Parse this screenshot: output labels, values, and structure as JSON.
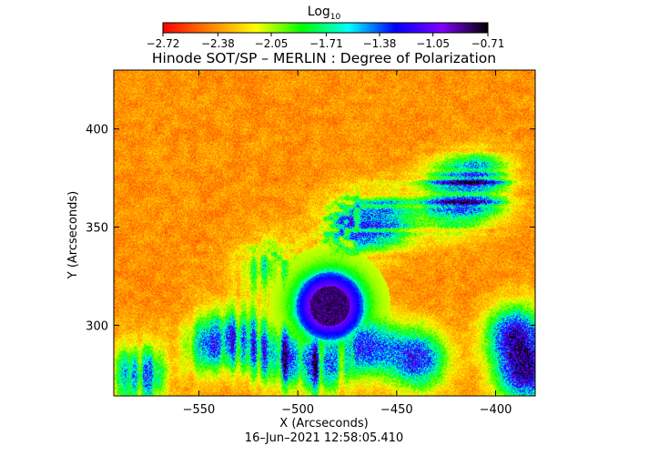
{
  "chart_data": {
    "type": "heatmap",
    "title": "Hinode SOT/SP – MERLIN : Degree of Polarization",
    "xlabel": "X (Arcseconds)",
    "ylabel": "Y (Arcseconds)",
    "footer": "16–Jun–2021 12:58:05.410",
    "xlim": [
      -593,
      -380
    ],
    "ylim": [
      264,
      430
    ],
    "xticks": [
      -550,
      -500,
      -450,
      -400
    ],
    "xtick_labels": [
      "−550",
      "−500",
      "−450",
      "−400"
    ],
    "yticks": [
      300,
      350,
      400
    ],
    "ytick_labels": [
      "300",
      "350",
      "400"
    ],
    "colorbar": {
      "label_base": "Log",
      "label_sub": "10",
      "range": [
        -2.72,
        -0.71
      ],
      "ticks": [
        -2.72,
        -2.38,
        -2.05,
        -1.71,
        -1.38,
        -1.05,
        -0.71
      ],
      "tick_labels": [
        "−2.72",
        "−2.38",
        "−2.05",
        "−1.71",
        "−1.38",
        "−1.05",
        "−0.71"
      ],
      "colormap": [
        "#ff0000",
        "#ff8000",
        "#ffff00",
        "#00ff00",
        "#00ffff",
        "#0000ff",
        "#7f00ff",
        "#000000"
      ]
    },
    "features": {
      "sunspot": {
        "x": -484,
        "y": 310,
        "r_umbra": 10,
        "r_penumbra": 17,
        "peak": -0.71
      },
      "background_level": -2.72,
      "plage_patches": [
        {
          "x": -455,
          "y": 355,
          "strength": 0.5
        },
        {
          "x": -425,
          "y": 365,
          "strength": 0.6
        },
        {
          "x": -408,
          "y": 370,
          "strength": 0.7
        },
        {
          "x": -510,
          "y": 285,
          "strength": 0.6
        },
        {
          "x": -490,
          "y": 280,
          "strength": 0.6
        },
        {
          "x": -440,
          "y": 283,
          "strength": 0.55
        },
        {
          "x": -465,
          "y": 290,
          "strength": 0.5
        },
        {
          "x": -390,
          "y": 295,
          "strength": 0.6
        },
        {
          "x": -385,
          "y": 275,
          "strength": 0.6
        },
        {
          "x": -580,
          "y": 275,
          "strength": 0.5
        },
        {
          "x": -545,
          "y": 290,
          "strength": 0.4
        },
        {
          "x": -475,
          "y": 350,
          "strength": 0.5
        },
        {
          "x": -515,
          "y": 330,
          "strength": 0.35
        },
        {
          "x": -530,
          "y": 295,
          "strength": 0.4
        }
      ]
    }
  }
}
